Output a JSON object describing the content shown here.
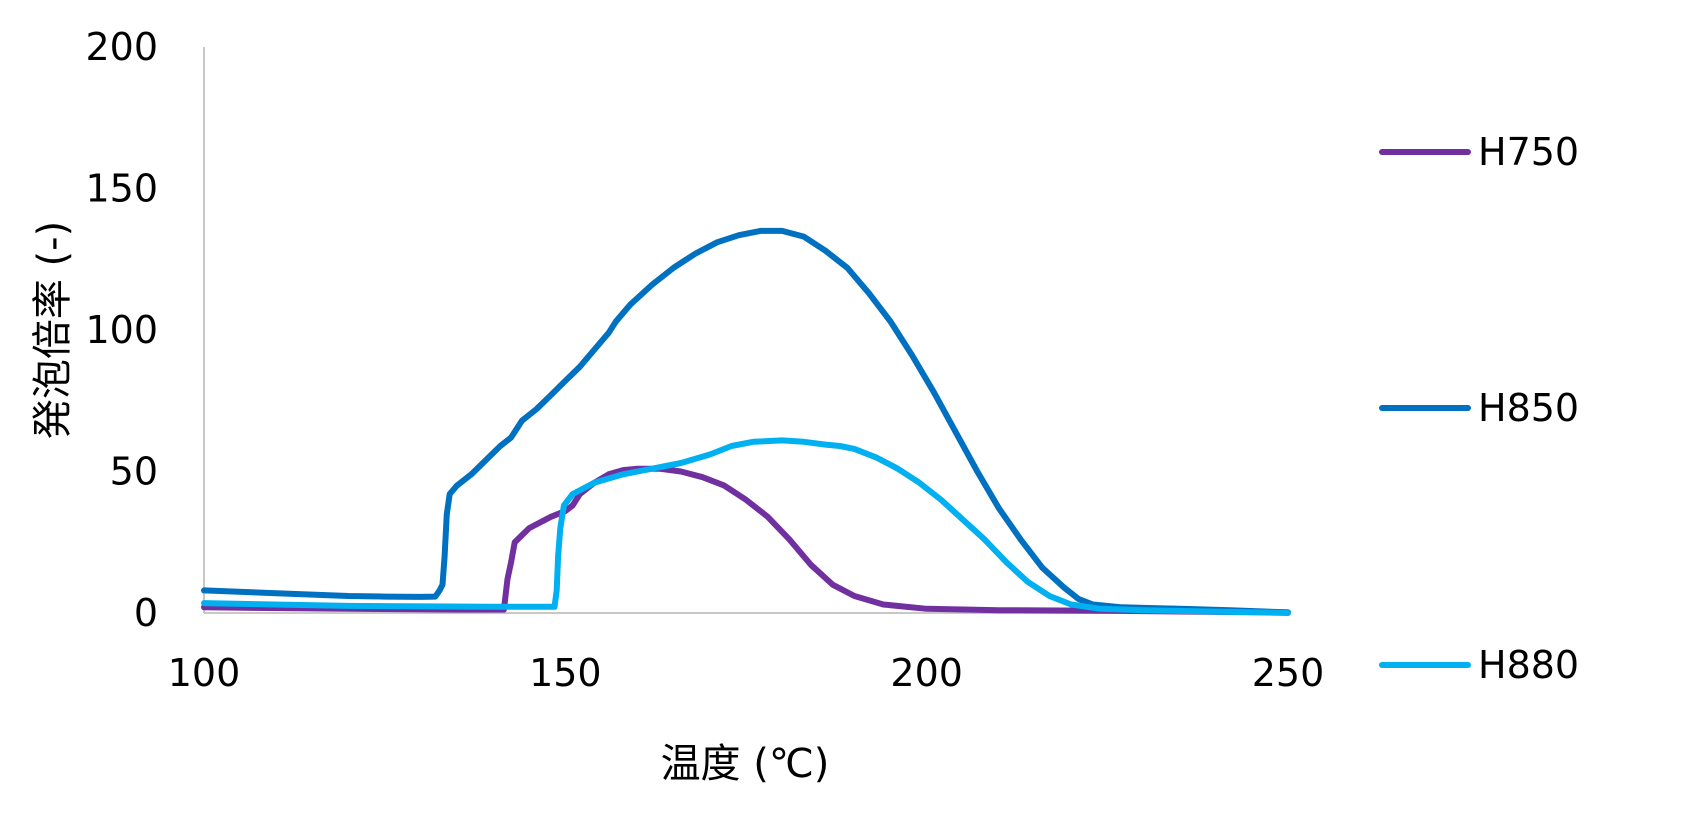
{
  "chart_data": {
    "type": "line",
    "xlabel": "温度 (℃)",
    "ylabel": "発泡倍率 (-)",
    "xlim": [
      100,
      250
    ],
    "ylim": [
      0,
      200
    ],
    "xticks": [
      "100",
      "150",
      "200",
      "250"
    ],
    "yticks": [
      "0",
      "50",
      "100",
      "150",
      "200"
    ],
    "grid": false,
    "legend": {
      "position": "right"
    },
    "series": [
      {
        "name": "H750",
        "color": "#7030A0",
        "points": [
          [
            100,
            2
          ],
          [
            120,
            1.5
          ],
          [
            135,
            1.2
          ],
          [
            141.5,
            1.2
          ],
          [
            142,
            12
          ],
          [
            142.5,
            18
          ],
          [
            143,
            25
          ],
          [
            145,
            30
          ],
          [
            148,
            34
          ],
          [
            150,
            36
          ],
          [
            151,
            38
          ],
          [
            152,
            42
          ],
          [
            154,
            46
          ],
          [
            156,
            49
          ],
          [
            158,
            50.5
          ],
          [
            160,
            51
          ],
          [
            163,
            51
          ],
          [
            166,
            50
          ],
          [
            169,
            48
          ],
          [
            172,
            45
          ],
          [
            175,
            40
          ],
          [
            178,
            34
          ],
          [
            181,
            26
          ],
          [
            184,
            17
          ],
          [
            187,
            10
          ],
          [
            190,
            6
          ],
          [
            194,
            3
          ],
          [
            200,
            1.5
          ],
          [
            210,
            1
          ],
          [
            225,
            0.8
          ],
          [
            240,
            0.4
          ],
          [
            250,
            0.2
          ]
        ]
      },
      {
        "name": "H850",
        "color": "#0070C0",
        "points": [
          [
            100,
            8
          ],
          [
            110,
            7
          ],
          [
            120,
            6
          ],
          [
            125,
            5.8
          ],
          [
            130,
            5.7
          ],
          [
            132,
            5.8
          ],
          [
            132.6,
            8
          ],
          [
            133,
            10
          ],
          [
            133.3,
            20
          ],
          [
            133.6,
            35
          ],
          [
            134,
            42
          ],
          [
            135,
            45
          ],
          [
            137,
            49
          ],
          [
            139,
            54
          ],
          [
            141,
            59
          ],
          [
            142.5,
            62
          ],
          [
            144,
            68
          ],
          [
            146,
            72
          ],
          [
            148,
            77
          ],
          [
            150,
            82
          ],
          [
            152,
            87
          ],
          [
            154,
            93
          ],
          [
            156,
            99
          ],
          [
            157,
            103
          ],
          [
            159,
            109
          ],
          [
            162,
            116
          ],
          [
            165,
            122
          ],
          [
            168,
            127
          ],
          [
            171,
            131
          ],
          [
            174,
            133.5
          ],
          [
            177,
            135
          ],
          [
            180,
            135
          ],
          [
            183,
            133
          ],
          [
            186,
            128
          ],
          [
            189,
            122
          ],
          [
            192,
            113
          ],
          [
            195,
            103
          ],
          [
            198,
            91
          ],
          [
            201,
            78
          ],
          [
            204,
            64
          ],
          [
            207,
            50
          ],
          [
            210,
            37
          ],
          [
            213,
            26
          ],
          [
            216,
            16
          ],
          [
            219,
            9
          ],
          [
            221,
            5
          ],
          [
            223,
            3
          ],
          [
            227,
            2
          ],
          [
            235,
            1.5
          ],
          [
            242,
            1
          ],
          [
            250,
            0.2
          ]
        ]
      },
      {
        "name": "H880",
        "color": "#00B0F0",
        "points": [
          [
            100,
            3.5
          ],
          [
            120,
            2.5
          ],
          [
            140,
            2.2
          ],
          [
            148.5,
            2.2
          ],
          [
            148.8,
            8
          ],
          [
            149,
            20
          ],
          [
            149.3,
            30
          ],
          [
            149.8,
            38
          ],
          [
            151,
            42
          ],
          [
            154,
            46
          ],
          [
            158,
            49
          ],
          [
            162,
            51
          ],
          [
            166,
            53
          ],
          [
            170,
            56
          ],
          [
            173,
            59
          ],
          [
            176,
            60.5
          ],
          [
            180,
            61
          ],
          [
            183,
            60.5
          ],
          [
            186,
            59.5
          ],
          [
            188,
            59
          ],
          [
            190,
            58
          ],
          [
            193,
            55
          ],
          [
            196,
            51
          ],
          [
            199,
            46
          ],
          [
            202,
            40
          ],
          [
            205,
            33
          ],
          [
            208,
            26
          ],
          [
            211,
            18
          ],
          [
            214,
            11
          ],
          [
            217,
            6
          ],
          [
            220,
            3
          ],
          [
            224,
            1.5
          ],
          [
            230,
            1
          ],
          [
            240,
            0.5
          ],
          [
            250,
            0
          ]
        ]
      }
    ]
  }
}
